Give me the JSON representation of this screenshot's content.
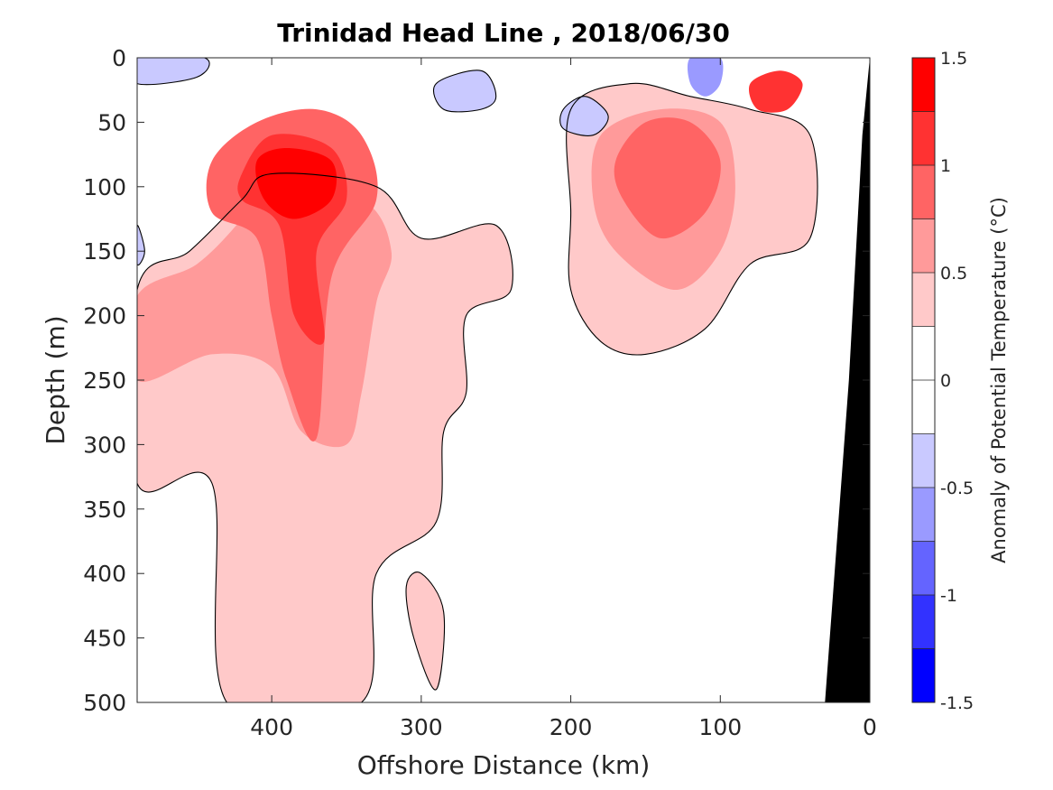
{
  "chart_data": {
    "type": "heatmap",
    "subtype": "filled-contour-section",
    "title": "Trinidad Head Line , 2018/06/30",
    "xlabel": "Offshore Distance (km)",
    "ylabel": "Depth (m)",
    "xlim": [
      490,
      0
    ],
    "x_reversed": true,
    "ylim": [
      0,
      500
    ],
    "y_reversed": true,
    "xticks": [
      "400",
      "300",
      "200",
      "100",
      "0"
    ],
    "xtick_values": [
      400,
      300,
      200,
      100,
      0
    ],
    "yticks": [
      "0",
      "50",
      "100",
      "150",
      "200",
      "250",
      "300",
      "350",
      "400",
      "450",
      "500"
    ],
    "ytick_values": [
      0,
      50,
      100,
      150,
      200,
      250,
      300,
      350,
      400,
      450,
      500
    ],
    "colorbar": {
      "label": "Anomaly of Potential Temperature (°C)",
      "range": [
        -1.5,
        1.5
      ],
      "step": 0.25,
      "ticks": [
        "1.5",
        "1",
        "0.5",
        "0",
        "-0.5",
        "-1",
        "-1.5"
      ],
      "tick_values": [
        1.5,
        1,
        0.5,
        0,
        -0.5,
        -1,
        -1.5
      ],
      "colors": [
        "#0000ff",
        "#3232ff",
        "#6464ff",
        "#9a9aff",
        "#c9c9ff",
        "#ffffff",
        "#ffffff",
        "#ffc9c9",
        "#ff9a9a",
        "#ff6464",
        "#ff3232",
        "#ff0000"
      ]
    },
    "features": [
      {
        "kind": "warm",
        "level": 0.25,
        "region": [
          {
            "x": 490,
            "y": 180
          },
          {
            "x": 455,
            "y": 150
          },
          {
            "x": 420,
            "y": 110
          },
          {
            "x": 400,
            "y": 90
          },
          {
            "x": 330,
            "y": 100
          },
          {
            "x": 300,
            "y": 140
          },
          {
            "x": 250,
            "y": 130
          },
          {
            "x": 240,
            "y": 180
          },
          {
            "x": 270,
            "y": 200
          },
          {
            "x": 270,
            "y": 260
          },
          {
            "x": 285,
            "y": 290
          },
          {
            "x": 290,
            "y": 360
          },
          {
            "x": 330,
            "y": 400
          },
          {
            "x": 340,
            "y": 500
          },
          {
            "x": 430,
            "y": 500
          },
          {
            "x": 440,
            "y": 330
          },
          {
            "x": 490,
            "y": 330
          }
        ]
      },
      {
        "kind": "warm",
        "level": 0.25,
        "region": [
          {
            "x": 200,
            "y": 40
          },
          {
            "x": 160,
            "y": 20
          },
          {
            "x": 120,
            "y": 30
          },
          {
            "x": 80,
            "y": 40
          },
          {
            "x": 40,
            "y": 60
          },
          {
            "x": 40,
            "y": 140
          },
          {
            "x": 80,
            "y": 160
          },
          {
            "x": 110,
            "y": 210
          },
          {
            "x": 150,
            "y": 230
          },
          {
            "x": 180,
            "y": 220
          },
          {
            "x": 200,
            "y": 180
          },
          {
            "x": 200,
            "y": 120
          }
        ]
      },
      {
        "kind": "warm",
        "level": 0.25,
        "region": [
          {
            "x": 300,
            "y": 400
          },
          {
            "x": 285,
            "y": 430
          },
          {
            "x": 290,
            "y": 490
          },
          {
            "x": 305,
            "y": 450
          },
          {
            "x": 310,
            "y": 410
          }
        ]
      },
      {
        "kind": "warm",
        "level": 0.5,
        "region": [
          {
            "x": 490,
            "y": 185
          },
          {
            "x": 450,
            "y": 160
          },
          {
            "x": 420,
            "y": 125
          },
          {
            "x": 405,
            "y": 100
          },
          {
            "x": 340,
            "y": 110
          },
          {
            "x": 320,
            "y": 150
          },
          {
            "x": 330,
            "y": 190
          },
          {
            "x": 340,
            "y": 260
          },
          {
            "x": 350,
            "y": 300
          },
          {
            "x": 380,
            "y": 290
          },
          {
            "x": 400,
            "y": 240
          },
          {
            "x": 440,
            "y": 230
          },
          {
            "x": 490,
            "y": 250
          }
        ]
      },
      {
        "kind": "warm",
        "level": 0.5,
        "region": [
          {
            "x": 180,
            "y": 60
          },
          {
            "x": 140,
            "y": 40
          },
          {
            "x": 100,
            "y": 50
          },
          {
            "x": 90,
            "y": 100
          },
          {
            "x": 100,
            "y": 150
          },
          {
            "x": 130,
            "y": 180
          },
          {
            "x": 170,
            "y": 150
          },
          {
            "x": 185,
            "y": 110
          }
        ]
      },
      {
        "kind": "warm",
        "level": 0.75,
        "region": [
          {
            "x": 440,
            "y": 80
          },
          {
            "x": 410,
            "y": 50
          },
          {
            "x": 370,
            "y": 40
          },
          {
            "x": 340,
            "y": 60
          },
          {
            "x": 330,
            "y": 110
          },
          {
            "x": 360,
            "y": 170
          },
          {
            "x": 370,
            "y": 295
          },
          {
            "x": 390,
            "y": 250
          },
          {
            "x": 400,
            "y": 200
          },
          {
            "x": 410,
            "y": 140
          },
          {
            "x": 440,
            "y": 120
          }
        ]
      },
      {
        "kind": "warm",
        "level": 0.75,
        "region": [
          {
            "x": 170,
            "y": 80
          },
          {
            "x": 150,
            "y": 50
          },
          {
            "x": 120,
            "y": 50
          },
          {
            "x": 100,
            "y": 80
          },
          {
            "x": 110,
            "y": 120
          },
          {
            "x": 140,
            "y": 140
          },
          {
            "x": 165,
            "y": 110
          }
        ]
      },
      {
        "kind": "warm",
        "level": 1.0,
        "region": [
          {
            "x": 420,
            "y": 90
          },
          {
            "x": 400,
            "y": 60
          },
          {
            "x": 360,
            "y": 70
          },
          {
            "x": 350,
            "y": 110
          },
          {
            "x": 370,
            "y": 150
          },
          {
            "x": 365,
            "y": 220
          },
          {
            "x": 385,
            "y": 200
          },
          {
            "x": 395,
            "y": 130
          },
          {
            "x": 420,
            "y": 110
          }
        ]
      },
      {
        "kind": "warm",
        "level": 1.0,
        "region": [
          {
            "x": 80,
            "y": 20
          },
          {
            "x": 60,
            "y": 10
          },
          {
            "x": 45,
            "y": 20
          },
          {
            "x": 55,
            "y": 40
          },
          {
            "x": 75,
            "y": 40
          }
        ]
      },
      {
        "kind": "warm",
        "level": 1.25,
        "region": [
          {
            "x": 410,
            "y": 80
          },
          {
            "x": 390,
            "y": 70
          },
          {
            "x": 360,
            "y": 80
          },
          {
            "x": 360,
            "y": 110
          },
          {
            "x": 385,
            "y": 125
          },
          {
            "x": 405,
            "y": 110
          }
        ]
      },
      {
        "kind": "cool",
        "level": -0.5,
        "region": [
          {
            "x": 120,
            "y": 0
          },
          {
            "x": 100,
            "y": 0
          },
          {
            "x": 100,
            "y": 20
          },
          {
            "x": 110,
            "y": 30
          },
          {
            "x": 120,
            "y": 20
          }
        ]
      },
      {
        "kind": "cool",
        "level": -0.25,
        "region": [
          {
            "x": 290,
            "y": 20
          },
          {
            "x": 260,
            "y": 10
          },
          {
            "x": 250,
            "y": 30
          },
          {
            "x": 260,
            "y": 40
          },
          {
            "x": 285,
            "y": 40
          }
        ]
      },
      {
        "kind": "cool",
        "level": -0.25,
        "region": [
          {
            "x": 205,
            "y": 40
          },
          {
            "x": 190,
            "y": 30
          },
          {
            "x": 175,
            "y": 45
          },
          {
            "x": 185,
            "y": 60
          },
          {
            "x": 205,
            "y": 55
          }
        ]
      },
      {
        "kind": "cool",
        "level": -0.25,
        "region": [
          {
            "x": 490,
            "y": 0
          },
          {
            "x": 445,
            "y": 0
          },
          {
            "x": 450,
            "y": 15
          },
          {
            "x": 490,
            "y": 20
          }
        ]
      },
      {
        "kind": "cool",
        "level": -0.25,
        "region": [
          {
            "x": 490,
            "y": 130
          },
          {
            "x": 485,
            "y": 150
          },
          {
            "x": 490,
            "y": 160
          }
        ]
      }
    ]
  }
}
